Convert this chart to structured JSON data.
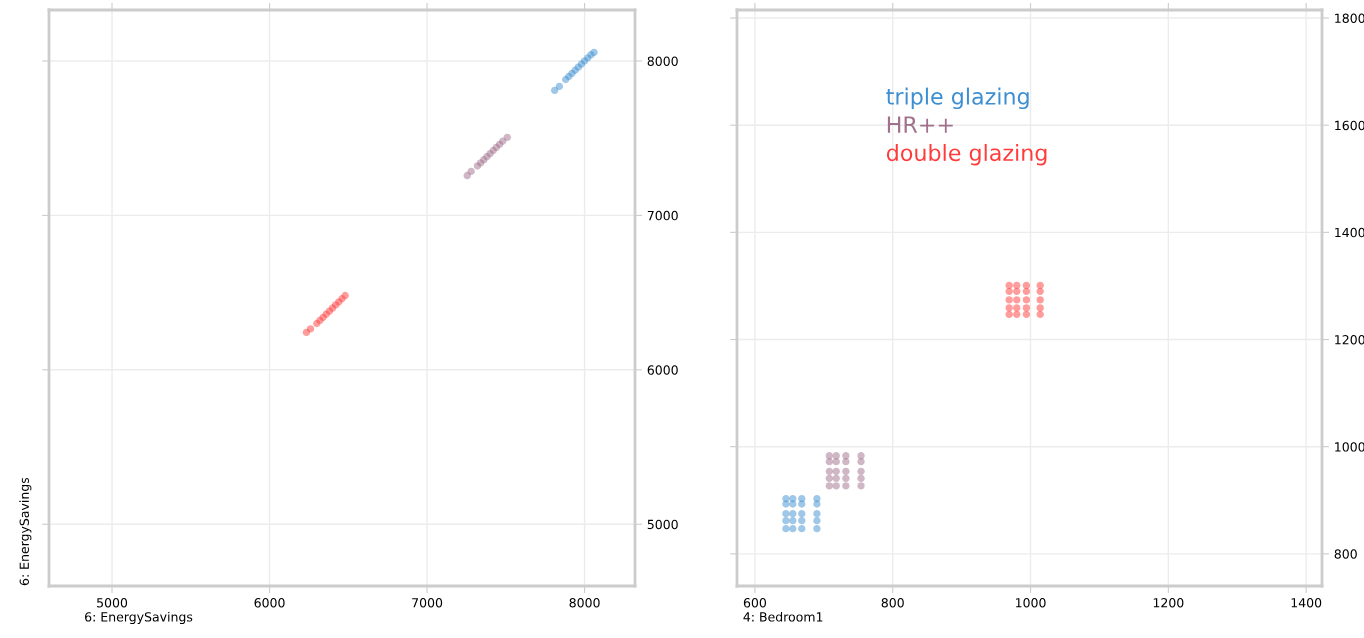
{
  "chart_data": [
    {
      "type": "scatter",
      "xlabel": "6: EnergySavings",
      "ylabel": "6: EnergySavings",
      "xlim": [
        4600,
        8320
      ],
      "ylim": [
        4600,
        8330
      ],
      "xticks": [
        5000,
        6000,
        7000,
        8000
      ],
      "yticks": [
        5000,
        6000,
        7000,
        8000
      ],
      "grid": true,
      "marker": "circle",
      "legend": false,
      "series": [
        {
          "color": "#3d8fd1",
          "x": [
            7810,
            7840,
            7880,
            7900,
            7920,
            7940,
            7960,
            7980,
            8000,
            8020,
            8040,
            8060
          ],
          "values": [
            7810,
            7835,
            7880,
            7900,
            7920,
            7940,
            7960,
            7980,
            8000,
            8020,
            8040,
            8055
          ]
        },
        {
          "color": "#a0708c",
          "x": [
            7255,
            7280,
            7320,
            7340,
            7360,
            7380,
            7400,
            7420,
            7440,
            7460,
            7480,
            7509
          ],
          "values": [
            7258,
            7285,
            7320,
            7340,
            7360,
            7380,
            7400,
            7420,
            7440,
            7460,
            7480,
            7505
          ]
        },
        {
          "color": "#ff3b3b",
          "x": [
            6234,
            6260,
            6300,
            6320,
            6340,
            6360,
            6380,
            6400,
            6420,
            6440,
            6460,
            6480
          ],
          "values": [
            6242,
            6265,
            6300,
            6320,
            6340,
            6360,
            6380,
            6400,
            6420,
            6440,
            6460,
            6481
          ]
        }
      ]
    },
    {
      "type": "scatter",
      "xlabel": "4: Bedroom1",
      "xlim": [
        574,
        1423
      ],
      "ylim": [
        740,
        1815
      ],
      "xticks": [
        600,
        800,
        1000,
        1200,
        1400
      ],
      "yticks": [
        800,
        1000,
        1200,
        1400,
        1600,
        1800
      ],
      "grid": true,
      "marker": "circle",
      "legend": "top left",
      "series": [
        {
          "name": "triple glazing",
          "color": "#3d8fd1",
          "x": [
            645,
            655,
            668,
            690,
            645,
            655,
            668,
            690,
            645,
            655,
            668,
            690,
            645,
            655,
            668,
            690,
            645,
            655,
            668,
            690
          ],
          "values": [
            847,
            847,
            847,
            847,
            862,
            862,
            862,
            862,
            875,
            875,
            875,
            875,
            893,
            893,
            893,
            893,
            903,
            903,
            903,
            903
          ]
        },
        {
          "name": "HR++",
          "color": "#a0708c",
          "x": [
            708,
            718,
            732,
            754,
            708,
            718,
            732,
            754,
            708,
            718,
            732,
            754,
            708,
            718,
            732,
            754,
            708,
            718,
            732,
            754
          ],
          "values": [
            927,
            927,
            927,
            927,
            941,
            941,
            941,
            941,
            954,
            954,
            954,
            954,
            972,
            972,
            972,
            972,
            983,
            983,
            983,
            983
          ]
        },
        {
          "name": "double glazing",
          "color": "#ff3b3b",
          "x": [
            969,
            980,
            994,
            1014,
            969,
            980,
            994,
            1014,
            969,
            980,
            994,
            1014,
            969,
            980,
            994,
            1014,
            969,
            980,
            994,
            1014
          ],
          "values": [
            1247,
            1247,
            1247,
            1247,
            1259,
            1259,
            1259,
            1259,
            1274,
            1274,
            1274,
            1274,
            1290,
            1290,
            1290,
            1290,
            1301,
            1301,
            1301,
            1301
          ]
        }
      ]
    }
  ]
}
